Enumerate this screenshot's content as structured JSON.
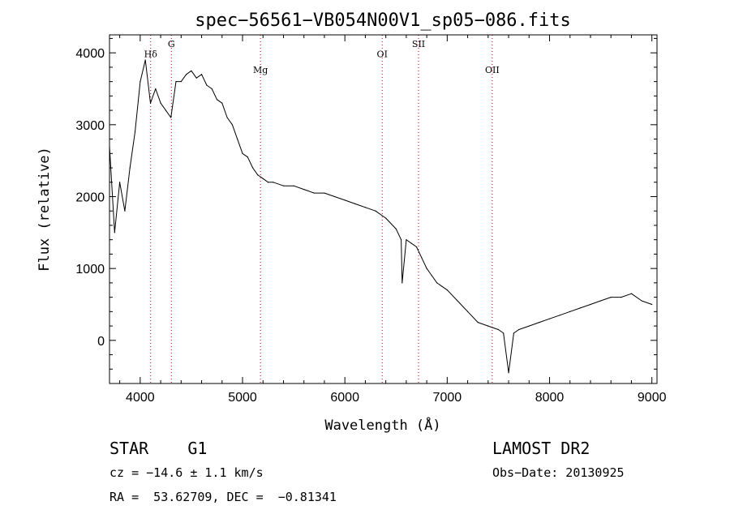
{
  "chart_data": {
    "type": "line",
    "title": "spec−56561−VB054N00V1_sp05−086.fits",
    "xlabel": "Wavelength (Å)",
    "ylabel": "Flux (relative)",
    "xlim": [
      3700,
      9050
    ],
    "ylim": [
      -600,
      4250
    ],
    "xticks": [
      4000,
      5000,
      6000,
      7000,
      8000,
      9000
    ],
    "yticks": [
      0,
      1000,
      2000,
      3000,
      4000
    ],
    "series": [
      {
        "x": [
          3700,
          3750,
          3800,
          3850,
          3900,
          3950,
          4000,
          4050,
          4100,
          4150,
          4200,
          4250,
          4300,
          4350,
          4400,
          4450,
          4500,
          4550,
          4600,
          4650,
          4700,
          4750,
          4800,
          4850,
          4900,
          4950,
          5000,
          5050,
          5100,
          5150,
          5200,
          5250,
          5300,
          5400,
          5500,
          5600,
          5700,
          5800,
          5900,
          6000,
          6100,
          6200,
          6300,
          6400,
          6500,
          6550,
          6560,
          6600,
          6650,
          6700,
          6750,
          6800,
          6850,
          6900,
          6950,
          7000,
          7100,
          7200,
          7300,
          7400,
          7500,
          7550,
          7600,
          7650,
          7700,
          7800,
          7900,
          8000,
          8100,
          8200,
          8300,
          8400,
          8500,
          8600,
          8700,
          8800,
          8900,
          9000
        ],
        "y": [
          2700,
          1500,
          2200,
          1800,
          2400,
          2900,
          3600,
          3900,
          3300,
          3500,
          3300,
          3200,
          3100,
          3600,
          3600,
          3700,
          3750,
          3650,
          3700,
          3550,
          3500,
          3350,
          3300,
          3100,
          3000,
          2800,
          2600,
          2550,
          2400,
          2300,
          2250,
          2200,
          2200,
          2150,
          2150,
          2100,
          2050,
          2050,
          2000,
          1950,
          1900,
          1850,
          1800,
          1700,
          1550,
          1400,
          800,
          1400,
          1350,
          1300,
          1150,
          1000,
          900,
          800,
          750,
          700,
          550,
          400,
          250,
          200,
          150,
          100,
          -450,
          100,
          150,
          200,
          250,
          300,
          350,
          400,
          450,
          500,
          550,
          600,
          600,
          650,
          550,
          500
        ]
      }
    ],
    "lines": [
      {
        "label": "Hδ",
        "x": 4102,
        "label_y": 3940
      },
      {
        "label": "G",
        "x": 4305,
        "label_y": 4080
      },
      {
        "label": "Mg",
        "x": 5175,
        "label_y": 3720
      },
      {
        "label": "OI",
        "x": 6365,
        "label_y": 3940
      },
      {
        "label": "SII",
        "x": 6720,
        "label_y": 4080
      },
      {
        "label": "OII",
        "x": 7440,
        "label_y": 3720
      }
    ],
    "grid": false,
    "legend": "none"
  },
  "info": {
    "class_label": "STAR    G1",
    "survey": "LAMOST DR2",
    "cz": "cz = −14.6 ± 1.1 km/s",
    "obs_date": "Obs−Date: 20130925",
    "coords": "RA =  53.62709, DEC =  −0.81341"
  },
  "colors": {
    "spectrum": "#000000",
    "line_markers": "#cc0000"
  }
}
